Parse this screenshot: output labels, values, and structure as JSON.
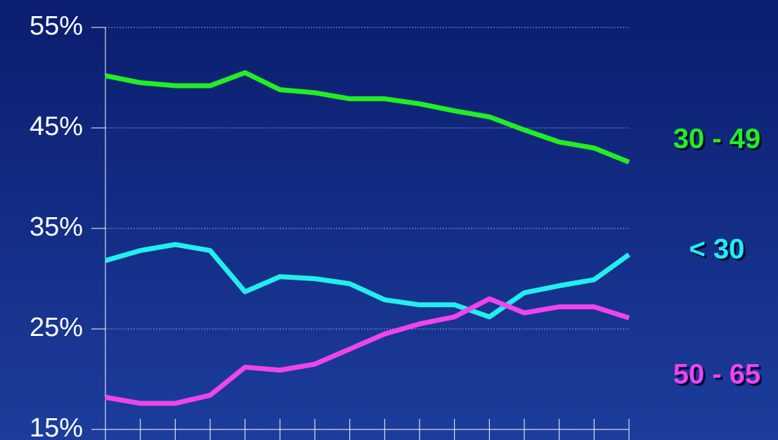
{
  "chart_data": {
    "type": "line",
    "categories": [
      null,
      null,
      null,
      null,
      null,
      null,
      null,
      null,
      null,
      null,
      null,
      null,
      null,
      null,
      null,
      null
    ],
    "series": [
      {
        "name": "30 - 49",
        "color": "#22ee22",
        "values": [
          50.2,
          49.5,
          49.2,
          49.2,
          50.5,
          48.8,
          48.5,
          47.9,
          47.9,
          47.4,
          46.7,
          46.1,
          44.8,
          43.6,
          43.0,
          41.6
        ]
      },
      {
        "name": "< 30",
        "color": "#22eeee",
        "values": [
          31.8,
          32.8,
          33.4,
          32.8,
          28.7,
          30.2,
          30.0,
          29.5,
          27.9,
          27.4,
          27.4,
          26.2,
          28.6,
          29.3,
          29.9,
          32.4
        ]
      },
      {
        "name": "50 - 65",
        "color": "#ee44ee",
        "values": [
          18.2,
          17.6,
          17.6,
          18.4,
          21.2,
          20.9,
          21.5,
          23.0,
          24.5,
          25.5,
          26.2,
          28.0,
          26.6,
          27.2,
          27.2,
          26.1
        ]
      }
    ],
    "ylim": [
      15,
      55
    ],
    "yticks": [
      {
        "value": 15,
        "label": "15%"
      },
      {
        "value": 25,
        "label": "25%"
      },
      {
        "value": 35,
        "label": "35%"
      },
      {
        "value": 45,
        "label": "45%"
      },
      {
        "value": 55,
        "label": "55%"
      }
    ],
    "grid": true
  }
}
